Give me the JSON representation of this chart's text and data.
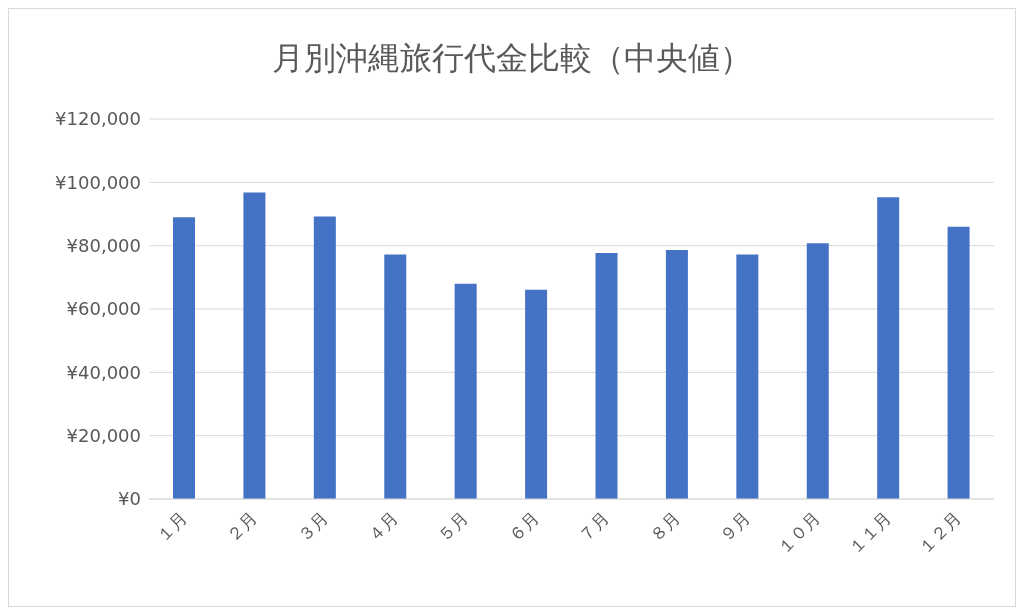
{
  "chart_data": {
    "type": "bar",
    "title": "月別沖縄旅行代金比較（中央値）",
    "categories": [
      "１月",
      "２月",
      "３月",
      "４月",
      "５月",
      "６月",
      "７月",
      "８月",
      "９月",
      "１０月",
      "１１月",
      "１２月"
    ],
    "values": [
      89000,
      96800,
      89200,
      77200,
      68000,
      66100,
      77700,
      78600,
      77200,
      80800,
      95300,
      86000
    ],
    "color": "#4472c4",
    "ylim": [
      0,
      120000
    ],
    "yticks": [
      {
        "value": 0,
        "label": "¥0"
      },
      {
        "value": 20000,
        "label": "¥20,000"
      },
      {
        "value": 40000,
        "label": "¥40,000"
      },
      {
        "value": 60000,
        "label": "¥60,000"
      },
      {
        "value": 80000,
        "label": "¥80,000"
      },
      {
        "value": 100000,
        "label": "¥100,000"
      },
      {
        "value": 120000,
        "label": "¥120,000"
      }
    ],
    "grid": "y"
  }
}
